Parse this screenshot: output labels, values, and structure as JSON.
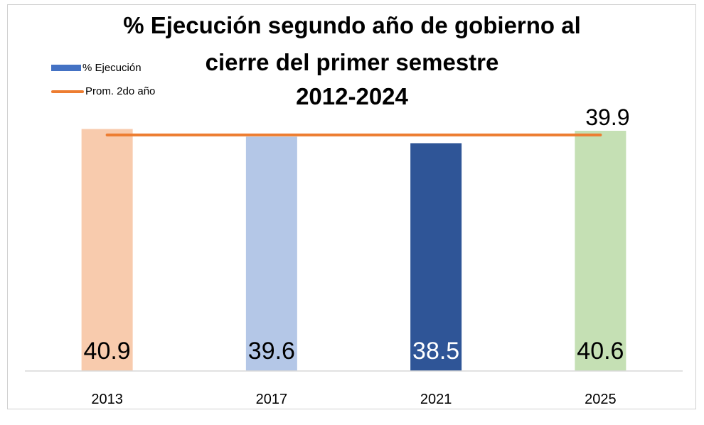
{
  "chart_data": {
    "type": "bar",
    "title_lines": [
      "% Ejecución segundo año de gobierno al",
      "cierre del primer semestre",
      "2012-2024"
    ],
    "categories": [
      "2013",
      "2017",
      "2021",
      "2025"
    ],
    "series": [
      {
        "name": "% Ejecución",
        "type": "bar",
        "values": [
          40.9,
          39.6,
          38.5,
          40.6
        ],
        "value_labels": [
          "40.9",
          "39.6",
          "38.5",
          "40.6"
        ],
        "colors": [
          "#F8CBAD",
          "#B4C7E7",
          "#2F5597",
          "#C5E0B4"
        ],
        "label_colors": [
          "#000000",
          "#000000",
          "#FFFFFF",
          "#000000"
        ]
      },
      {
        "name": "Prom. 2do año",
        "type": "line",
        "values": [
          39.9,
          39.9,
          39.9,
          39.9
        ],
        "end_label": "39.9",
        "color": "#ED7D31"
      }
    ],
    "legend_colors": {
      "bar": "#4472C4",
      "line": "#ED7D31"
    },
    "ylim": [
      0,
      41.2
    ],
    "grid": false,
    "legend_position": "top-left"
  }
}
